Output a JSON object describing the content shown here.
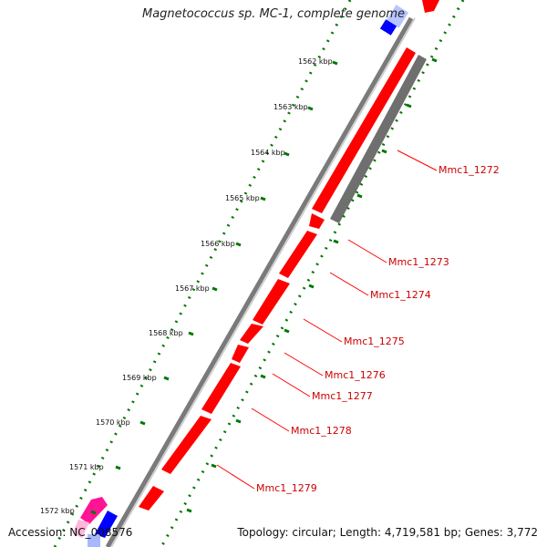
{
  "title": "Magnetococcus sp. MC-1, complete genome",
  "accession": "Accession: NC_008576",
  "summary": "Topology: circular; Length: 4,719,581 bp; Genes: 3,772",
  "scale_labels": [
    "1562 kbp",
    "1563 kbp",
    "1564 kbp",
    "1565 kbp",
    "1566 kbp",
    "1567 kbp",
    "1568 kbp",
    "1569 kbp",
    "1570 kbp",
    "1571 kbp",
    "1572 kbp"
  ],
  "gene_labels": [
    "Mmc1_1272",
    "Mmc1_1273",
    "Mmc1_1274",
    "Mmc1_1275",
    "Mmc1_1276",
    "Mmc1_1277",
    "Mmc1_1278",
    "Mmc1_1279"
  ],
  "colors": {
    "gene_red": "#ff0000",
    "gene_gray": "#6f6f6f",
    "backbone": "#8a8a8a",
    "tick_green": "#007700",
    "label_red": "#cc0000",
    "blue": "#0000ff",
    "magenta": "#ff1493"
  }
}
